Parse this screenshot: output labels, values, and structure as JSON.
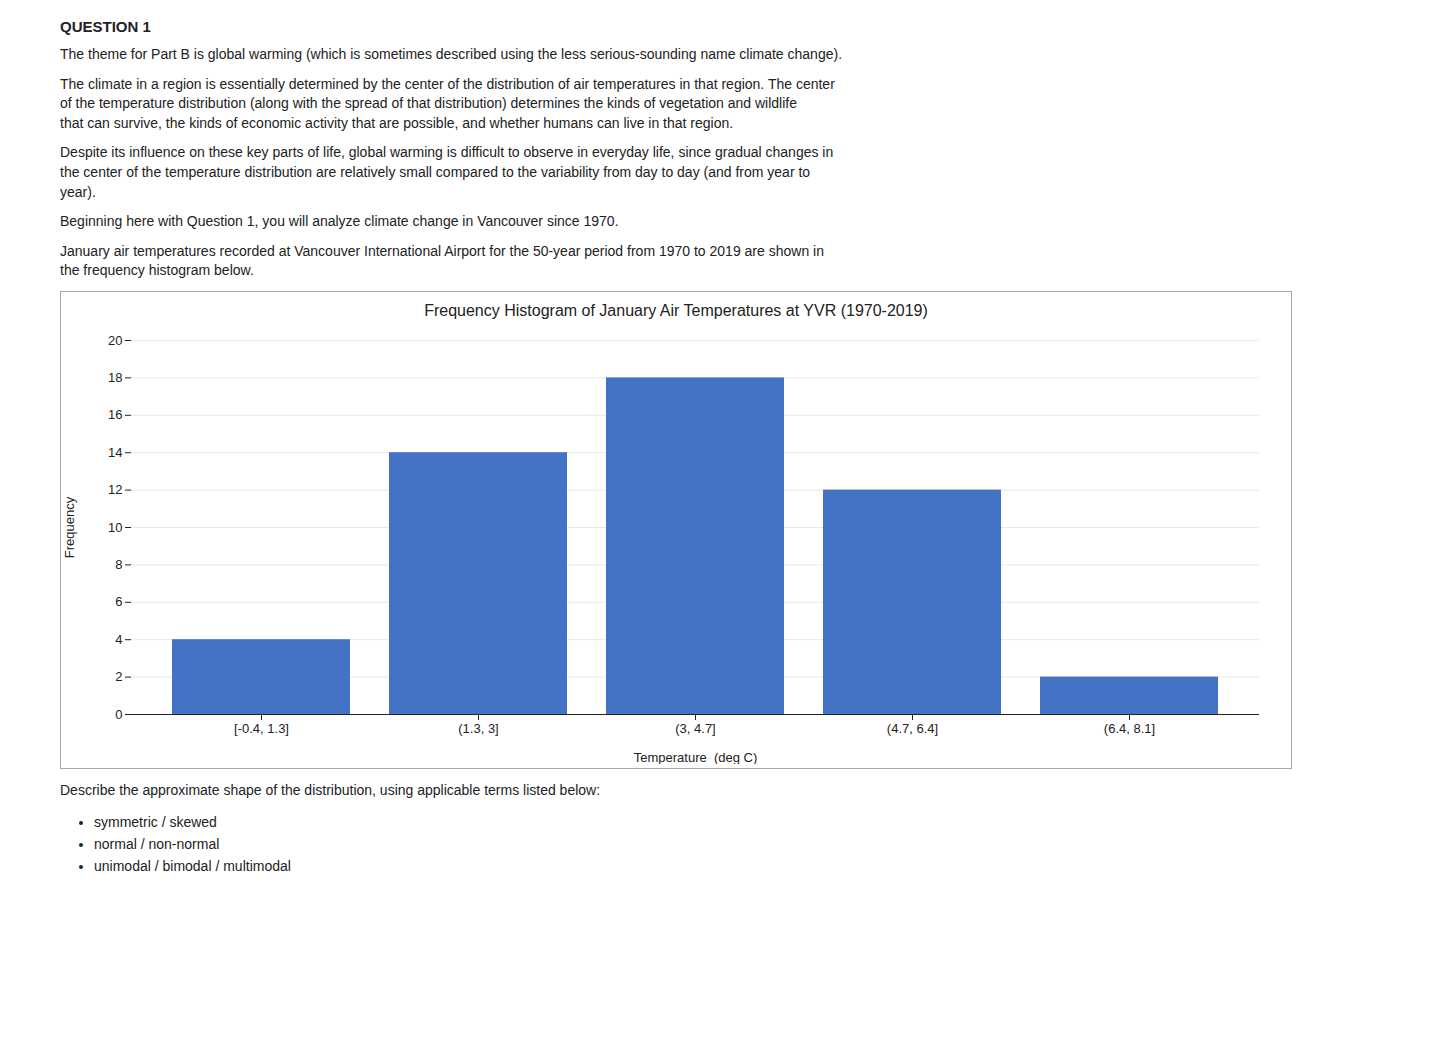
{
  "chart_data": {
    "type": "bar",
    "title": "Frequency Histogram of January Air Temperatures  at YVR (1970-2019)",
    "xlabel": "Temperature  (deg C)",
    "ylabel": "Frequency",
    "categories": [
      "[-0.4, 1.3]",
      "(1.3, 3]",
      "(3, 4.7]",
      "(4.7, 6.4]",
      "(6.4, 8.1]"
    ],
    "values": [
      4,
      14,
      18,
      12,
      2
    ],
    "color": "#4472C4",
    "ylim": [
      0,
      20
    ],
    "yticks": [
      0,
      2,
      4,
      6,
      8,
      10,
      12,
      14,
      16,
      18,
      20
    ],
    "grid": true,
    "annotations": [
      "QUESTION 1",
      "The theme for Part B is global warming (which is sometimes described using the less serious-sounding name climate change).",
      "The climate in a region is essentially determined by the center of the distribution of air temperatures in that region. The center\nof the temperature distribution (along with the spread of that distribution) determines the kinds of vegetation and wildlife\nthat can survive, the kinds of economic activity that are possible, and whether humans can live in that region.",
      "Despite its influence on these key parts of life, global warming is difficult to observe in everyday life, since gradual changes in\nthe center of the temperature distribution are relatively small compared to the variability from day to day (and from year to\nyear).",
      "Beginning here with Question 1, you will analyze climate change in Vancouver since 1970.",
      "January air temperatures recorded at Vancouver International Airport for the 50-year period from 1970 to 2019 are shown in\nthe frequency histogram below.",
      "Describe the approximate shape of the distribution, using applicable terms listed below:",
      "symmetric / skewed",
      "normal / non-normal",
      "unimodal / bimodal / multimodal"
    ]
  }
}
